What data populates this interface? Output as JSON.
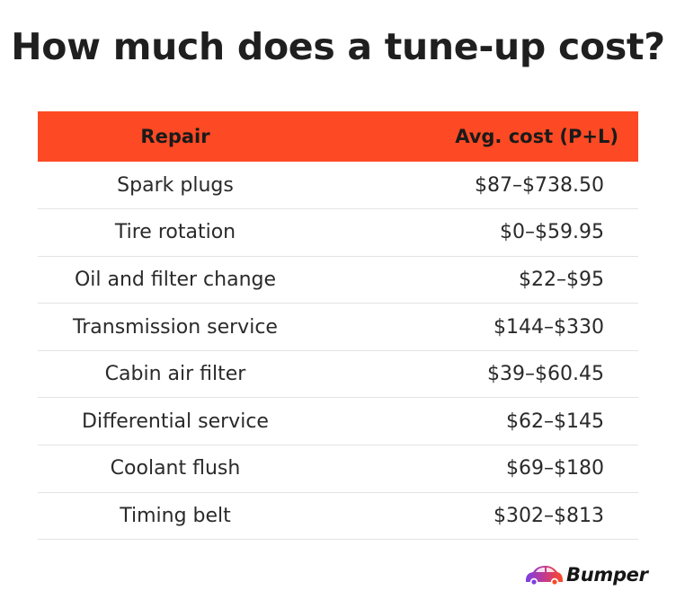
{
  "title": "How much does a tune-up cost?",
  "table": {
    "headers": {
      "repair": "Repair",
      "cost": "Avg. cost (P+L)"
    },
    "rows": [
      {
        "repair": "Spark plugs",
        "cost": "$87–$738.50"
      },
      {
        "repair": "Tire rotation",
        "cost": "$0–$59.95"
      },
      {
        "repair": "Oil and filter change",
        "cost": "$22–$95"
      },
      {
        "repair": "Transmission service",
        "cost": "$144–$330"
      },
      {
        "repair": "Cabin air filter",
        "cost": "$39–$60.45"
      },
      {
        "repair": "Differential service",
        "cost": "$62–$145"
      },
      {
        "repair": "Coolant flush",
        "cost": "$69–$180"
      },
      {
        "repair": "Timing belt",
        "cost": "$302–$813"
      }
    ]
  },
  "brand": {
    "name": "Bumper",
    "icon": "car-icon"
  },
  "colors": {
    "header_background": "#fd4a24",
    "title_text": "#1f1f1f",
    "row_divider": "#e3e3e3"
  }
}
